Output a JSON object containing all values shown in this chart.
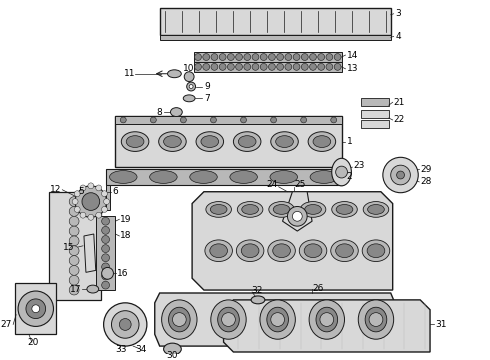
{
  "bg_color": "#ffffff",
  "fig_width": 4.9,
  "fig_height": 3.6,
  "dpi": 100,
  "lc": "#1a1a1a",
  "lw": 0.7,
  "label_fs": 6.5
}
